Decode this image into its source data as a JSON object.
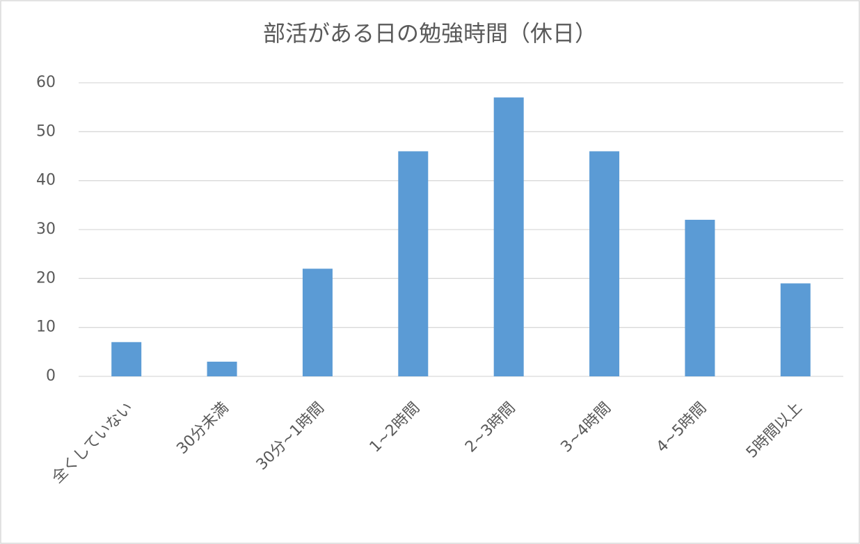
{
  "chart_data": {
    "type": "bar",
    "title": "部活がある日の勉強時間（休日）",
    "categories": [
      "全くしていない",
      "30分未満",
      "30分~1時間",
      "1~2時間",
      "2~3時間",
      "3~4時間",
      "4~5時間",
      "5時間以上"
    ],
    "values": [
      7,
      3,
      22,
      46,
      57,
      46,
      32,
      19
    ],
    "color": "#5b9bd5",
    "ylim": [
      0,
      60
    ],
    "yticks": [
      0,
      10,
      20,
      30,
      40,
      50,
      60
    ],
    "grid": true
  }
}
